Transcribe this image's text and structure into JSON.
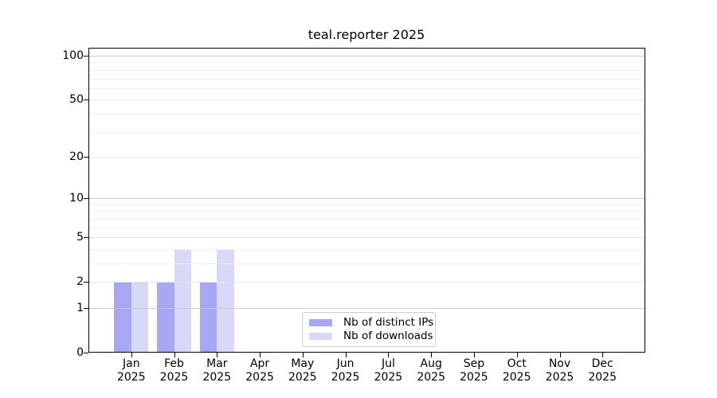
{
  "chart_data": {
    "type": "bar",
    "title": "teal.reporter 2025",
    "categories": [
      "Jan 2025",
      "Feb 2025",
      "Mar 2025",
      "Apr 2025",
      "May 2025",
      "Jun 2025",
      "Jul 2025",
      "Aug 2025",
      "Sep 2025",
      "Oct 2025",
      "Nov 2025",
      "Dec 2025"
    ],
    "months": [
      "Jan",
      "Feb",
      "Mar",
      "Apr",
      "May",
      "Jun",
      "Jul",
      "Aug",
      "Sep",
      "Oct",
      "Nov",
      "Dec"
    ],
    "year": "2025",
    "series": [
      {
        "name": "Nb of distinct IPs",
        "color": "#a7a7f3",
        "values": [
          2,
          2,
          2,
          0,
          0,
          0,
          0,
          0,
          0,
          0,
          0,
          0
        ]
      },
      {
        "name": "Nb of downloads",
        "color": "#d8d8f9",
        "values": [
          2,
          4,
          4,
          0,
          0,
          0,
          0,
          0,
          0,
          0,
          0,
          0
        ]
      }
    ],
    "yscale": "log1p",
    "ylim": [
      0,
      100
    ],
    "y_ticks": [
      0,
      1,
      2,
      5,
      10,
      20,
      50,
      100
    ],
    "y_minor_ticks": [
      3,
      4,
      6,
      7,
      8,
      9,
      30,
      40,
      60,
      70,
      80,
      90
    ],
    "grid": true,
    "legend_position": "inside lower center"
  },
  "colors": {
    "background": "#ffffff",
    "spine": "#000000",
    "grid_decade": "#c9c9c9",
    "grid_major": "#e5e5e5",
    "grid_minor": "#eeeeee",
    "bar_distinct_ips": "#a7a7f3",
    "bar_downloads": "#d8d8f9",
    "legend_border": "#cccccc"
  }
}
